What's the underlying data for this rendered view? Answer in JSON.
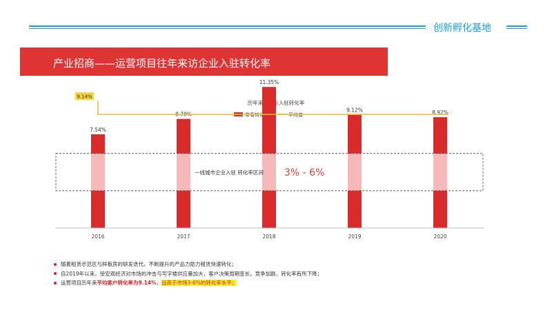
{
  "header": {
    "title": "创新孵化基地"
  },
  "banner": {
    "title": "产业招商——运营项目往年来访企业入驻转化率"
  },
  "chart_data": {
    "type": "bar",
    "title": "历年来访企业入驻转化率",
    "categories": [
      "2016",
      "2017",
      "2018",
      "2019",
      "2020"
    ],
    "series": [
      {
        "name": "带看转化率",
        "values": [
          7.54,
          8.78,
          11.35,
          9.12,
          8.92
        ],
        "labels": [
          "7.54%",
          "8.78%",
          "11.35%",
          "9.12%",
          "8.92%"
        ],
        "color": "#d92b2b"
      },
      {
        "name": "平均值",
        "values": [
          9.14,
          9.14,
          9.14,
          9.14,
          9.14
        ],
        "color": "#f2c12e"
      }
    ],
    "average_label": "9.14%",
    "ylim": [
      0,
      12
    ],
    "legend": "top-center",
    "grid": false,
    "band": {
      "range": [
        3,
        6
      ],
      "label": "一线城市企业入驻 转化率区间",
      "range_label": "3% - 6%",
      "label_color": "#e53935"
    }
  },
  "notes": {
    "b1": "随着租赁示范区与样板房的研发迭代，不断提升的产品力助力租赁快速转化；",
    "b2": "自2019年以来，受宏观经济对市场的冲击与写字楼供应量加大，客户决策周期变长，竞争加剧，转化率有所下降；",
    "b3_pre": "运营项目历年来",
    "b3_red": "平均客户转化率为9.14%",
    "b3_mid": "，",
    "b3_yellow": "远高于市场3-6%的转化率水平；"
  }
}
